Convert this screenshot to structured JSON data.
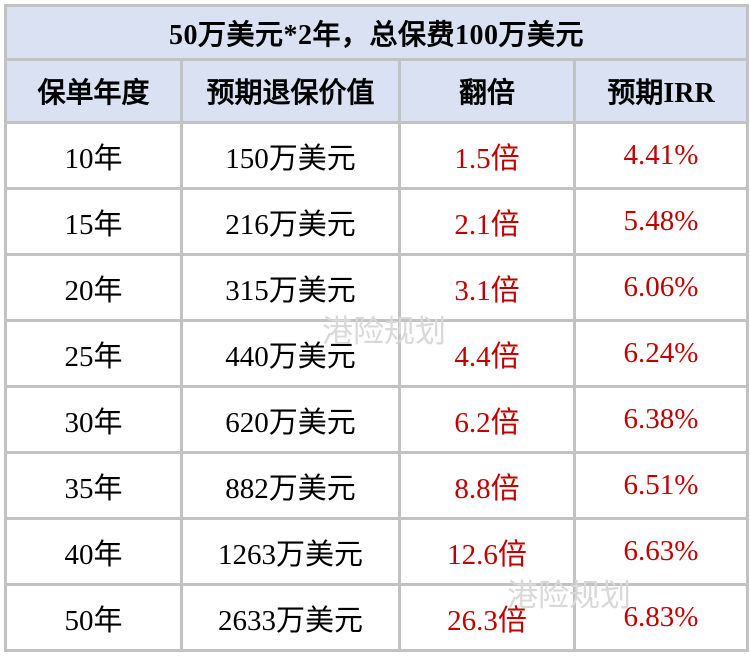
{
  "title": "50万美元*2年，总保费100万美元",
  "table": {
    "columns": [
      "保单年度",
      "预期退保价值",
      "翻倍",
      "预期IRR"
    ],
    "rows": [
      [
        "10年",
        "150万美元",
        "1.5倍",
        "4.41%"
      ],
      [
        "15年",
        "216万美元",
        "2.1倍",
        "5.48%"
      ],
      [
        "20年",
        "315万美元",
        "3.1倍",
        "6.06%"
      ],
      [
        "25年",
        "440万美元",
        "4.4倍",
        "6.24%"
      ],
      [
        "30年",
        "620万美元",
        "6.2倍",
        "6.38%"
      ],
      [
        "35年",
        "882万美元",
        "8.8倍",
        "6.51%"
      ],
      [
        "40年",
        "1263万美元",
        "12.6倍",
        "6.63%"
      ],
      [
        "50年",
        "2633万美元",
        "26.3倍",
        "6.83%"
      ]
    ]
  },
  "watermarks": [
    "港险规划",
    "港险规划"
  ],
  "colors": {
    "header_bg": "#d9e1f2",
    "grid_border": "#c2c2c2",
    "accent_red": "#c00000",
    "text_black": "#000000",
    "watermark_gray": "#d9d9d9"
  },
  "chart_data": {
    "type": "table",
    "title": "50万美元*2年，总保费100万美元",
    "columns": [
      "保单年度",
      "预期退保价值",
      "翻倍",
      "预期IRR"
    ],
    "rows": [
      [
        "10年",
        "150万美元",
        "1.5倍",
        "4.41%"
      ],
      [
        "15年",
        "216万美元",
        "2.1倍",
        "5.48%"
      ],
      [
        "20年",
        "315万美元",
        "3.1倍",
        "6.06%"
      ],
      [
        "25年",
        "440万美元",
        "4.4倍",
        "6.24%"
      ],
      [
        "30年",
        "620万美元",
        "6.2倍",
        "6.38%"
      ],
      [
        "35年",
        "882万美元",
        "8.8倍",
        "6.51%"
      ],
      [
        "40年",
        "1263万美元",
        "12.6倍",
        "6.63%"
      ],
      [
        "50年",
        "2633万美元",
        "26.3倍",
        "6.83%"
      ]
    ],
    "series": [
      {
        "name": "保单年度",
        "values": [
          10,
          15,
          20,
          25,
          30,
          35,
          40,
          50
        ]
      },
      {
        "name": "预期退保价值(万美元)",
        "values": [
          150,
          216,
          315,
          440,
          620,
          882,
          1263,
          2633
        ]
      },
      {
        "name": "翻倍(倍)",
        "values": [
          1.5,
          2.1,
          3.1,
          4.4,
          6.2,
          8.8,
          12.6,
          26.3
        ]
      },
      {
        "name": "预期IRR(%)",
        "values": [
          4.41,
          5.48,
          6.06,
          6.24,
          6.38,
          6.51,
          6.63,
          6.83
        ]
      }
    ]
  }
}
